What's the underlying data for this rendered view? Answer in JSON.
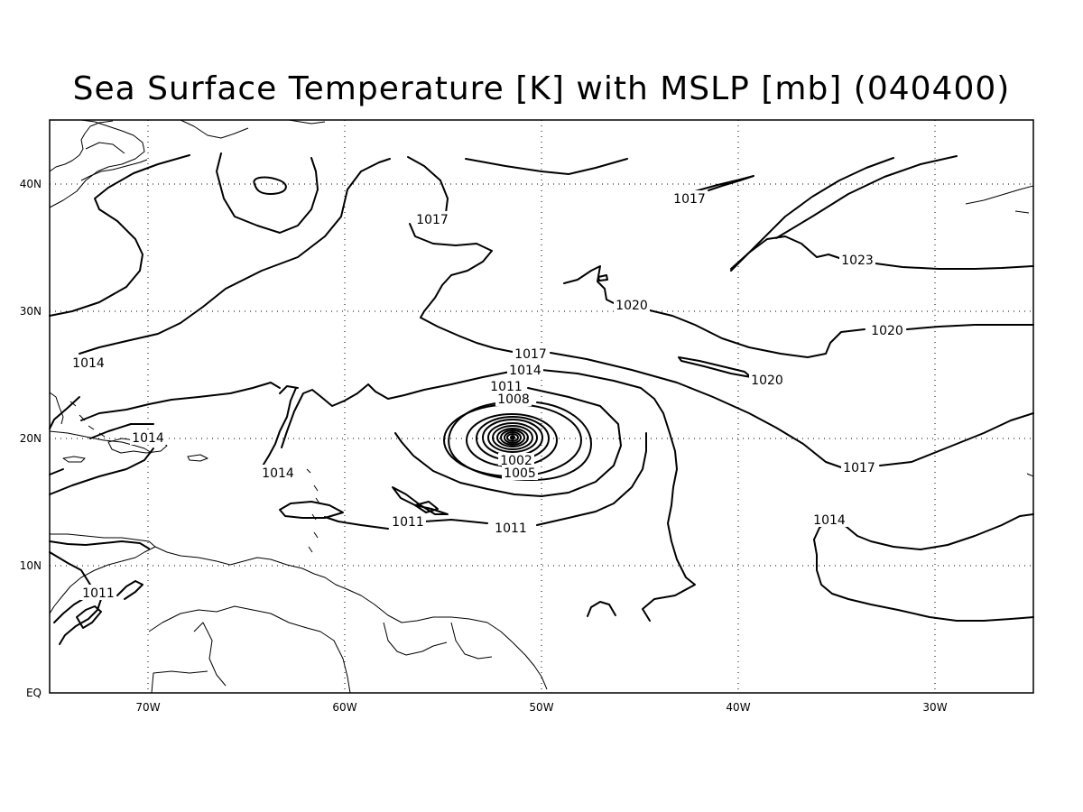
{
  "title": "Sea Surface Temperature [K] with MSLP [mb] (040400)",
  "map": {
    "projection": "lat-lon",
    "lon_range": [
      "75W",
      "25W"
    ],
    "lat_range": [
      "EQ",
      "45N"
    ],
    "grid": "dotted",
    "x_ticks": [
      "70W",
      "60W",
      "50W",
      "40W",
      "30W"
    ],
    "y_ticks": [
      "EQ",
      "10N",
      "20N",
      "30N",
      "40N"
    ],
    "contour_labels": [
      {
        "id": "l1017a",
        "text": "1017"
      },
      {
        "id": "l1017b",
        "text": "1017"
      },
      {
        "id": "l1023",
        "text": "1023"
      },
      {
        "id": "l1020a",
        "text": "1020"
      },
      {
        "id": "l1020b",
        "text": "1020"
      },
      {
        "id": "l1020c",
        "text": "1020"
      },
      {
        "id": "l1017c",
        "text": "1017"
      },
      {
        "id": "l1014a",
        "text": "1014"
      },
      {
        "id": "l1011a",
        "text": "1011"
      },
      {
        "id": "l1008",
        "text": "1008"
      },
      {
        "id": "l1014b",
        "text": "1014"
      },
      {
        "id": "l1014c",
        "text": "1014"
      },
      {
        "id": "l1014d",
        "text": "1014"
      },
      {
        "id": "l1005",
        "text": "1005"
      },
      {
        "id": "l1002",
        "text": "1002"
      },
      {
        "id": "l1017d",
        "text": "1017"
      },
      {
        "id": "l1014e",
        "text": "1014"
      },
      {
        "id": "l1011b",
        "text": "1011"
      },
      {
        "id": "l1011c",
        "text": "1011"
      },
      {
        "id": "l1011d",
        "text": "1011"
      }
    ],
    "low_center": {
      "lon": "51.5W",
      "lat": "20N"
    }
  }
}
